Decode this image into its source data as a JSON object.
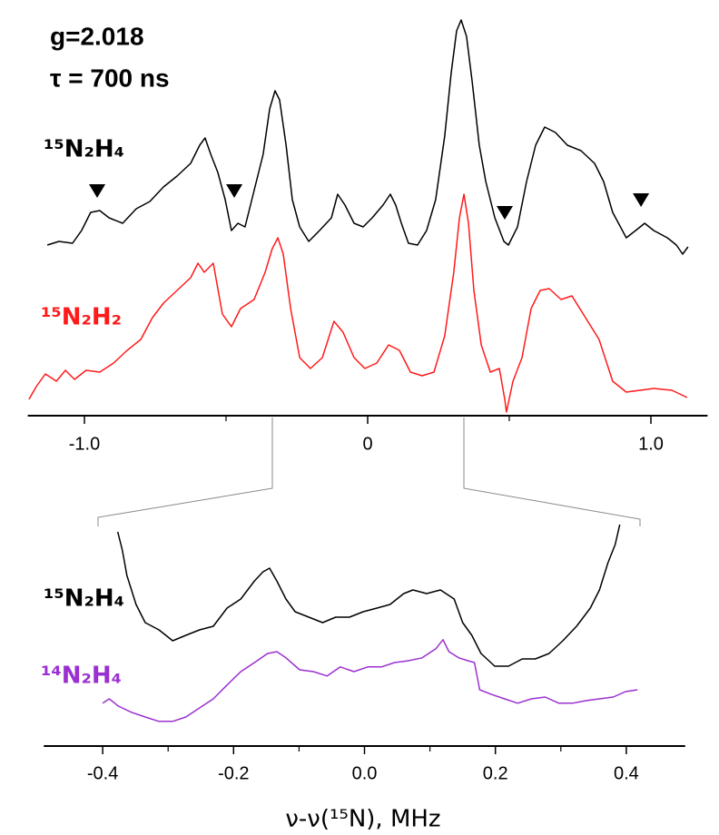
{
  "chart_data": [
    {
      "type": "line",
      "annotations": [
        "g=2.018",
        "τ = 700 ns"
      ],
      "xlim": [
        -1.2,
        1.2
      ],
      "xticks": [
        {
          "value": -1,
          "label": "-1.0"
        },
        0,
        {
          "value": 1,
          "label": "1.0"
        }
      ],
      "minor_xticks": [
        -0.5,
        0.5
      ],
      "ylim": [
        0,
        110
      ],
      "series": [
        {
          "name": "¹⁵N₂H₄",
          "color": "#000000",
          "x": [
            -1.131,
            -1.09,
            -1.042,
            -1.01,
            -0.978,
            -0.946,
            -0.913,
            -0.865,
            -0.817,
            -0.769,
            -0.721,
            -0.673,
            -0.625,
            -0.593,
            -0.574,
            -0.554,
            -0.529,
            -0.503,
            -0.481,
            -0.458,
            -0.433,
            -0.401,
            -0.369,
            -0.346,
            -0.327,
            -0.311,
            -0.288,
            -0.266,
            -0.24,
            -0.208,
            -0.17,
            -0.128,
            -0.106,
            -0.08,
            -0.048,
            -0.016,
            0.016,
            0.054,
            0.08,
            0.099,
            0.119,
            0.144,
            0.176,
            0.208,
            0.24,
            0.272,
            0.295,
            0.314,
            0.33,
            0.349,
            0.369,
            0.394,
            0.417,
            0.449,
            0.481,
            0.497,
            0.529,
            0.561,
            0.593,
            0.625,
            0.663,
            0.705,
            0.753,
            0.801,
            0.833,
            0.865,
            0.913,
            0.946,
            0.978,
            1.01,
            1.058,
            1.09,
            1.112,
            1.131
          ],
          "values": [
            47,
            48,
            47.5,
            51,
            56,
            56.5,
            54.5,
            53,
            57,
            59,
            63,
            66,
            69.5,
            74.5,
            76.5,
            72,
            67,
            59.5,
            51,
            53,
            52,
            62,
            72,
            84.5,
            89.5,
            87,
            74.5,
            59.5,
            52,
            48,
            51,
            54.5,
            61,
            58,
            53,
            52,
            54.5,
            58,
            61,
            58,
            53,
            47.5,
            47,
            51,
            59.5,
            77,
            94.5,
            106,
            109,
            104.5,
            92,
            74.5,
            64.5,
            54.5,
            48,
            47,
            52,
            64.5,
            74.5,
            79.5,
            78,
            74.5,
            73,
            69.5,
            64.5,
            56,
            49,
            51,
            53,
            51,
            49,
            47,
            44.5,
            46.5
          ]
        },
        {
          "name": "¹⁵N₂H₂",
          "color": "#ff1a1a",
          "x": [
            -1.196,
            -1.17,
            -1.138,
            -1.099,
            -1.067,
            -1.035,
            -0.994,
            -0.946,
            -0.897,
            -0.849,
            -0.801,
            -0.76,
            -0.721,
            -0.673,
            -0.625,
            -0.599,
            -0.577,
            -0.545,
            -0.513,
            -0.481,
            -0.449,
            -0.401,
            -0.362,
            -0.337,
            -0.317,
            -0.298,
            -0.272,
            -0.24,
            -0.202,
            -0.16,
            -0.119,
            -0.087,
            -0.048,
            -0.01,
            0.032,
            0.074,
            0.112,
            0.151,
            0.192,
            0.234,
            0.272,
            0.304,
            0.324,
            0.34,
            0.356,
            0.375,
            0.401,
            0.433,
            0.465,
            0.484,
            0.49,
            0.513,
            0.545,
            0.577,
            0.609,
            0.641,
            0.683,
            0.721,
            0.769,
            0.817,
            0.865,
            0.913,
            0.962,
            1.01,
            1.074,
            1.128
          ],
          "values": [
            4.5,
            8,
            11.5,
            9.5,
            12.5,
            10,
            12.5,
            12,
            14.5,
            18,
            21,
            27,
            31,
            34.5,
            38,
            42,
            39.5,
            42,
            28,
            24.5,
            29.5,
            32,
            39.5,
            46,
            49,
            44.5,
            29.5,
            16,
            13,
            16,
            26,
            23,
            16,
            13,
            14.5,
            19.5,
            18,
            12,
            11,
            12,
            22,
            39.5,
            54.5,
            61,
            53,
            34.5,
            19.5,
            12,
            13,
            4.5,
            1,
            9.5,
            16,
            29.5,
            34.5,
            35,
            32,
            33,
            27,
            21,
            9.5,
            6.5,
            7,
            7.5,
            7,
            5
          ]
        }
      ],
      "markers": {
        "color": "#000000",
        "x": [
          -0.955,
          -0.471,
          0.484,
          0.965
        ],
        "values": [
          62,
          62,
          56,
          59.5
        ]
      }
    },
    {
      "type": "line",
      "xlabel": "ν-ν(¹⁵N), MHz",
      "xlim": [
        -0.49,
        0.49
      ],
      "xticks": [
        -0.4,
        -0.2,
        {
          "value": 0,
          "label": "0.0"
        },
        0.2,
        0.4
      ],
      "minor_xticks": [
        -0.3,
        -0.1,
        0.1,
        0.3
      ],
      "ylim": [
        0,
        65
      ],
      "series": [
        {
          "name": "¹⁵N₂H₄",
          "color": "#000000",
          "x": [
            -0.377,
            -0.37,
            -0.363,
            -0.349,
            -0.335,
            -0.314,
            -0.293,
            -0.273,
            -0.252,
            -0.231,
            -0.21,
            -0.189,
            -0.168,
            -0.155,
            -0.145,
            -0.134,
            -0.12,
            -0.106,
            -0.085,
            -0.064,
            -0.044,
            -0.023,
            -0.002,
            0.019,
            0.039,
            0.06,
            0.074,
            0.095,
            0.116,
            0.137,
            0.15,
            0.164,
            0.178,
            0.199,
            0.22,
            0.241,
            0.261,
            0.282,
            0.303,
            0.324,
            0.345,
            0.359,
            0.372,
            0.383,
            0.39
          ],
          "values": [
            59,
            54,
            47,
            39,
            34,
            32,
            29,
            30.5,
            32,
            33,
            38,
            40.5,
            45.5,
            48,
            49,
            45.5,
            40.5,
            37,
            35.5,
            34,
            35.5,
            35.5,
            37,
            38,
            39,
            42,
            43,
            42,
            43,
            40.5,
            34,
            30.5,
            25.5,
            22,
            22,
            24,
            24,
            25.5,
            29,
            33,
            38,
            43,
            50.5,
            55.5,
            61
          ]
        },
        {
          "name": "¹⁴N₂H₄",
          "color": "#9b30d0",
          "x": [
            -0.4,
            -0.39,
            -0.376,
            -0.356,
            -0.335,
            -0.314,
            -0.293,
            -0.273,
            -0.252,
            -0.231,
            -0.21,
            -0.189,
            -0.168,
            -0.148,
            -0.134,
            -0.12,
            -0.099,
            -0.078,
            -0.057,
            -0.037,
            -0.016,
            0.005,
            0.026,
            0.046,
            0.067,
            0.088,
            0.109,
            0.12,
            0.129,
            0.144,
            0.158,
            0.168,
            0.176,
            0.193,
            0.214,
            0.234,
            0.255,
            0.276,
            0.297,
            0.318,
            0.338,
            0.359,
            0.38,
            0.399,
            0.417
          ],
          "values": [
            11.8,
            13,
            11,
            9.3,
            8,
            6.8,
            6.8,
            8,
            10.5,
            13,
            16.8,
            20.5,
            23,
            25.5,
            26,
            24.3,
            21,
            20.5,
            19.3,
            21.8,
            20.5,
            21.8,
            21.8,
            23,
            23.5,
            24.3,
            26.8,
            29.3,
            26,
            24.3,
            23.5,
            23,
            15.5,
            14.3,
            13,
            11.8,
            13,
            13.5,
            11.8,
            11.8,
            12.5,
            13,
            13.5,
            15,
            15.5
          ]
        }
      ]
    }
  ]
}
